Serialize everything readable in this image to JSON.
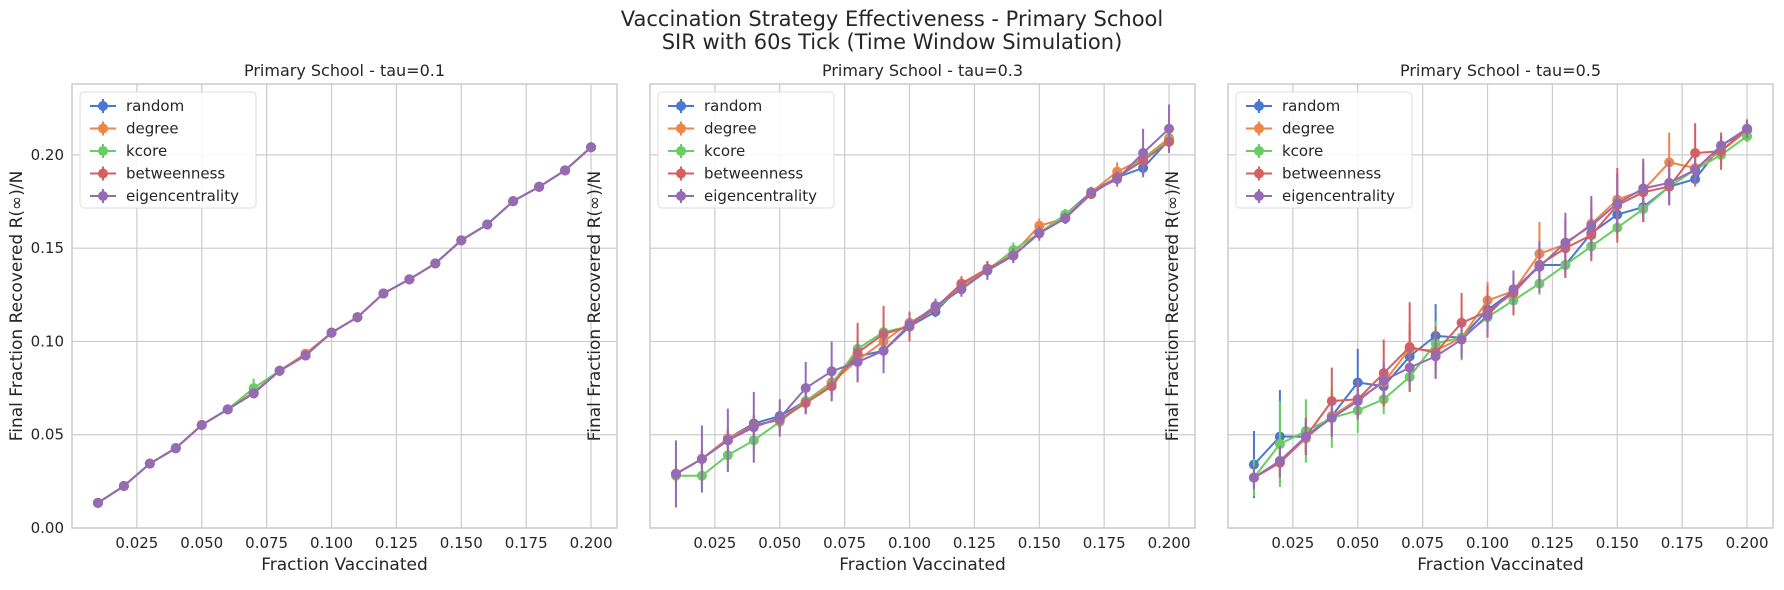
{
  "figure": {
    "title_line1": "Vaccination Strategy Effectiveness - Primary School",
    "title_line2": "SIR with 60s Tick (Time Window Simulation)"
  },
  "colors": {
    "random": "#4878d0",
    "degree": "#ee854a",
    "kcore": "#6acc64",
    "betweenness": "#d65f5f",
    "eigencentrality": "#956cb4"
  },
  "chart_data": [
    {
      "type": "line",
      "title": "Primary School - tau=0.1",
      "xlabel": "Fraction Vaccinated",
      "ylabel": "Final Fraction Recovered R(∞)/N",
      "xlim": [
        0.0,
        0.21
      ],
      "ylim": [
        0.0,
        0.238
      ],
      "xticks": [
        "0.025",
        "0.050",
        "0.075",
        "0.100",
        "0.125",
        "0.150",
        "0.175",
        "0.200"
      ],
      "yticks": [
        "0.00",
        "0.05",
        "0.10",
        "0.15",
        "0.20"
      ],
      "show_yticklabels": true,
      "grid": true,
      "legend": "top-left",
      "x": [
        0.01,
        0.02,
        0.03,
        0.04,
        0.05,
        0.06,
        0.07,
        0.08,
        0.09,
        0.1,
        0.11,
        0.12,
        0.13,
        0.14,
        0.15,
        0.16,
        0.17,
        0.18,
        0.19,
        0.2
      ],
      "series": [
        {
          "name": "random",
          "values": [
            0.0135,
            0.0225,
            0.0345,
            0.0428,
            0.0552,
            0.0636,
            0.0722,
            0.0843,
            0.0925,
            0.1047,
            0.113,
            0.1257,
            0.1333,
            0.1418,
            0.1542,
            0.1627,
            0.1752,
            0.1829,
            0.1917,
            0.2041
          ],
          "err": [
            0.0006,
            0.0006,
            0.0006,
            0.0006,
            0.0006,
            0.0006,
            0.0006,
            0.0006,
            0.0006,
            0.0006,
            0.0006,
            0.001,
            0.0006,
            0.0006,
            0.0006,
            0.0006,
            0.0006,
            0.0006,
            0.0006,
            0.0006
          ]
        },
        {
          "name": "degree",
          "values": [
            0.0135,
            0.0225,
            0.0345,
            0.0428,
            0.0552,
            0.0636,
            0.0728,
            0.0843,
            0.0935,
            0.1047,
            0.113,
            0.1257,
            0.1333,
            0.1418,
            0.1542,
            0.1627,
            0.1752,
            0.1829,
            0.1917,
            0.2041
          ],
          "err": [
            0.0006,
            0.0006,
            0.0006,
            0.0006,
            0.0006,
            0.0006,
            0.001,
            0.0006,
            0.001,
            0.0006,
            0.0006,
            0.0006,
            0.0006,
            0.0006,
            0.0006,
            0.0006,
            0.0006,
            0.0006,
            0.0006,
            0.0006
          ]
        },
        {
          "name": "kcore",
          "values": [
            0.0135,
            0.0225,
            0.0345,
            0.0428,
            0.0552,
            0.0636,
            0.075,
            0.0843,
            0.0925,
            0.1047,
            0.113,
            0.1257,
            0.1333,
            0.1418,
            0.1542,
            0.1627,
            0.1752,
            0.1829,
            0.1917,
            0.2041
          ],
          "err": [
            0.0006,
            0.0006,
            0.0006,
            0.0006,
            0.0006,
            0.0006,
            0.005,
            0.0006,
            0.0006,
            0.0006,
            0.0006,
            0.0006,
            0.0006,
            0.0006,
            0.0006,
            0.0006,
            0.0006,
            0.0006,
            0.0006,
            0.0006
          ]
        },
        {
          "name": "betweenness",
          "values": [
            0.0135,
            0.0225,
            0.0345,
            0.0428,
            0.0552,
            0.0636,
            0.0722,
            0.0843,
            0.0925,
            0.1047,
            0.113,
            0.1257,
            0.1333,
            0.1418,
            0.1542,
            0.1627,
            0.1752,
            0.1829,
            0.1917,
            0.2041
          ],
          "err": [
            0.0006,
            0.0006,
            0.0006,
            0.0006,
            0.0006,
            0.0006,
            0.0006,
            0.0006,
            0.0006,
            0.0006,
            0.0006,
            0.0006,
            0.0006,
            0.0006,
            0.0006,
            0.0006,
            0.0006,
            0.0006,
            0.0006,
            0.0006
          ]
        },
        {
          "name": "eigencentrality",
          "values": [
            0.0135,
            0.0225,
            0.0345,
            0.0428,
            0.0552,
            0.0636,
            0.0722,
            0.0843,
            0.0925,
            0.1047,
            0.113,
            0.1257,
            0.1333,
            0.1418,
            0.1542,
            0.1627,
            0.1752,
            0.1829,
            0.1917,
            0.2041
          ],
          "err": [
            0.0006,
            0.0006,
            0.0006,
            0.0006,
            0.0006,
            0.0006,
            0.0006,
            0.0006,
            0.0006,
            0.0006,
            0.0006,
            0.0006,
            0.0006,
            0.0006,
            0.0006,
            0.0006,
            0.0006,
            0.0006,
            0.0006,
            0.0006
          ]
        }
      ]
    },
    {
      "type": "line",
      "title": "Primary School - tau=0.3",
      "xlabel": "Fraction Vaccinated",
      "ylabel": "Final Fraction Recovered R(∞)/N",
      "xlim": [
        0.0,
        0.21
      ],
      "ylim": [
        0.0,
        0.238
      ],
      "xticks": [
        "0.025",
        "0.050",
        "0.075",
        "0.100",
        "0.125",
        "0.150",
        "0.175",
        "0.200"
      ],
      "yticks": [
        "0.00",
        "0.05",
        "0.10",
        "0.15",
        "0.20"
      ],
      "show_yticklabels": false,
      "grid": true,
      "legend": "top-left",
      "x": [
        0.01,
        0.02,
        0.03,
        0.04,
        0.05,
        0.06,
        0.07,
        0.08,
        0.09,
        0.1,
        0.11,
        0.12,
        0.13,
        0.14,
        0.15,
        0.16,
        0.17,
        0.18,
        0.19,
        0.2
      ],
      "series": [
        {
          "name": "random",
          "values": [
            0.029,
            0.037,
            0.048,
            0.056,
            0.06,
            0.068,
            0.078,
            0.092,
            0.095,
            0.108,
            0.116,
            0.13,
            0.138,
            0.146,
            0.158,
            0.168,
            0.18,
            0.188,
            0.193,
            0.208
          ],
          "err": [
            0.004,
            0.004,
            0.005,
            0.004,
            0.003,
            0.003,
            0.004,
            0.004,
            0.004,
            0.003,
            0.003,
            0.003,
            0.003,
            0.003,
            0.003,
            0.003,
            0.002,
            0.003,
            0.004,
            0.004
          ]
        },
        {
          "name": "degree",
          "values": [
            0.029,
            0.037,
            0.048,
            0.055,
            0.058,
            0.068,
            0.078,
            0.09,
            0.1,
            0.11,
            0.118,
            0.13,
            0.139,
            0.147,
            0.162,
            0.166,
            0.18,
            0.191,
            0.198,
            0.209
          ],
          "err": [
            0.004,
            0.005,
            0.005,
            0.005,
            0.004,
            0.004,
            0.004,
            0.005,
            0.006,
            0.004,
            0.003,
            0.003,
            0.004,
            0.003,
            0.004,
            0.003,
            0.003,
            0.005,
            0.006,
            0.005
          ]
        },
        {
          "name": "kcore",
          "values": [
            0.028,
            0.028,
            0.039,
            0.047,
            0.057,
            0.068,
            0.077,
            0.096,
            0.105,
            0.108,
            0.118,
            0.128,
            0.138,
            0.149,
            0.158,
            0.168,
            0.179,
            0.188,
            0.198,
            0.208
          ],
          "err": [
            0.006,
            0.008,
            0.008,
            0.008,
            0.006,
            0.006,
            0.006,
            0.006,
            0.006,
            0.004,
            0.004,
            0.004,
            0.004,
            0.004,
            0.003,
            0.003,
            0.002,
            0.003,
            0.004,
            0.004
          ]
        },
        {
          "name": "betweenness",
          "values": [
            0.029,
            0.037,
            0.047,
            0.055,
            0.058,
            0.067,
            0.076,
            0.094,
            0.104,
            0.108,
            0.118,
            0.131,
            0.139,
            0.146,
            0.158,
            0.166,
            0.179,
            0.188,
            0.197,
            0.207
          ],
          "err": [
            0.004,
            0.005,
            0.006,
            0.006,
            0.005,
            0.006,
            0.008,
            0.016,
            0.015,
            0.008,
            0.004,
            0.004,
            0.004,
            0.004,
            0.003,
            0.003,
            0.002,
            0.003,
            0.005,
            0.005
          ]
        },
        {
          "name": "eigencentrality",
          "values": [
            0.029,
            0.037,
            0.047,
            0.054,
            0.059,
            0.075,
            0.084,
            0.089,
            0.095,
            0.109,
            0.119,
            0.128,
            0.138,
            0.146,
            0.158,
            0.166,
            0.18,
            0.187,
            0.201,
            0.214
          ],
          "err": [
            0.018,
            0.018,
            0.017,
            0.019,
            0.01,
            0.014,
            0.016,
            0.01,
            0.012,
            0.006,
            0.004,
            0.004,
            0.005,
            0.004,
            0.004,
            0.003,
            0.002,
            0.004,
            0.013,
            0.013
          ]
        }
      ]
    },
    {
      "type": "line",
      "title": "Primary School - tau=0.5",
      "xlabel": "Fraction Vaccinated",
      "ylabel": "Final Fraction Recovered R(∞)/N",
      "xlim": [
        0.0,
        0.21
      ],
      "ylim": [
        0.0,
        0.238
      ],
      "xticks": [
        "0.025",
        "0.050",
        "0.075",
        "0.100",
        "0.125",
        "0.150",
        "0.175",
        "0.200"
      ],
      "yticks": [
        "0.00",
        "0.05",
        "0.10",
        "0.15",
        "0.20"
      ],
      "show_yticklabels": false,
      "grid": true,
      "legend": "top-left",
      "x": [
        0.01,
        0.02,
        0.03,
        0.04,
        0.05,
        0.06,
        0.07,
        0.08,
        0.09,
        0.1,
        0.11,
        0.12,
        0.13,
        0.14,
        0.15,
        0.16,
        0.17,
        0.18,
        0.19,
        0.2
      ],
      "series": [
        {
          "name": "random",
          "values": [
            0.034,
            0.049,
            0.049,
            0.06,
            0.078,
            0.076,
            0.092,
            0.103,
            0.102,
            0.117,
            0.127,
            0.141,
            0.141,
            0.158,
            0.168,
            0.172,
            0.183,
            0.187,
            0.205,
            0.213
          ],
          "err": [
            0.018,
            0.025,
            0.01,
            0.012,
            0.018,
            0.01,
            0.014,
            0.017,
            0.012,
            0.01,
            0.008,
            0.008,
            0.006,
            0.008,
            0.01,
            0.008,
            0.004,
            0.004,
            0.004,
            0.003
          ]
        },
        {
          "name": "degree",
          "values": [
            0.027,
            0.035,
            0.048,
            0.06,
            0.069,
            0.078,
            0.096,
            0.095,
            0.102,
            0.122,
            0.127,
            0.147,
            0.152,
            0.163,
            0.176,
            0.181,
            0.196,
            0.193,
            0.202,
            0.213
          ],
          "err": [
            0.006,
            0.008,
            0.008,
            0.01,
            0.01,
            0.01,
            0.014,
            0.012,
            0.012,
            0.01,
            0.008,
            0.017,
            0.012,
            0.012,
            0.014,
            0.012,
            0.016,
            0.01,
            0.008,
            0.006
          ]
        },
        {
          "name": "kcore",
          "values": [
            0.027,
            0.045,
            0.052,
            0.059,
            0.063,
            0.069,
            0.081,
            0.099,
            0.102,
            0.113,
            0.122,
            0.131,
            0.141,
            0.151,
            0.161,
            0.171,
            0.183,
            0.192,
            0.2,
            0.21
          ],
          "err": [
            0.01,
            0.023,
            0.017,
            0.016,
            0.012,
            0.008,
            0.008,
            0.012,
            0.012,
            0.008,
            0.008,
            0.006,
            0.006,
            0.006,
            0.006,
            0.004,
            0.004,
            0.004,
            0.003,
            0.003
          ]
        },
        {
          "name": "betweenness",
          "values": [
            0.027,
            0.035,
            0.049,
            0.068,
            0.069,
            0.083,
            0.097,
            0.094,
            0.11,
            0.116,
            0.126,
            0.141,
            0.15,
            0.157,
            0.173,
            0.18,
            0.183,
            0.201,
            0.202,
            0.214
          ],
          "err": [
            0.006,
            0.008,
            0.01,
            0.018,
            0.01,
            0.018,
            0.024,
            0.014,
            0.016,
            0.014,
            0.012,
            0.012,
            0.016,
            0.014,
            0.02,
            0.016,
            0.01,
            0.016,
            0.01,
            0.005
          ]
        },
        {
          "name": "eigencentrality",
          "values": [
            0.027,
            0.036,
            0.049,
            0.059,
            0.068,
            0.079,
            0.086,
            0.092,
            0.101,
            0.114,
            0.128,
            0.14,
            0.153,
            0.162,
            0.174,
            0.182,
            0.185,
            0.192,
            0.205,
            0.214
          ],
          "err": [
            0.006,
            0.008,
            0.008,
            0.01,
            0.01,
            0.01,
            0.01,
            0.012,
            0.01,
            0.01,
            0.01,
            0.014,
            0.016,
            0.016,
            0.016,
            0.016,
            0.012,
            0.008,
            0.005,
            0.004
          ]
        }
      ]
    }
  ]
}
